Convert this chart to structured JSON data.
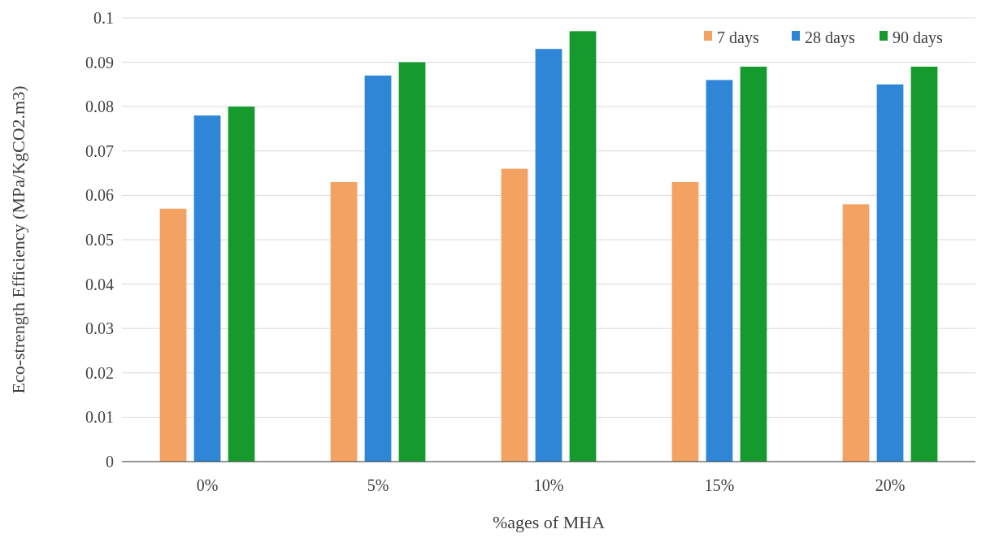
{
  "chart_data": {
    "type": "bar",
    "xlabel": "%ages of MHA",
    "ylabel": "Eco-strength Efficiency (MPa/KgCO2.m3)",
    "categories": [
      "0%",
      "5%",
      "10%",
      "15%",
      "20%"
    ],
    "series": [
      {
        "name": "7 days",
        "color": "#f4a261",
        "values": [
          0.057,
          0.063,
          0.066,
          0.063,
          0.058
        ]
      },
      {
        "name": "28 days",
        "color": "#2f86d6",
        "values": [
          0.078,
          0.087,
          0.093,
          0.086,
          0.085
        ]
      },
      {
        "name": "90 days",
        "color": "#169a2e",
        "values": [
          0.08,
          0.09,
          0.097,
          0.089,
          0.089
        ]
      }
    ],
    "ylim": [
      0,
      0.1
    ],
    "yticks": [
      0,
      0.01,
      0.02,
      0.03,
      0.04,
      0.05,
      0.06,
      0.07,
      0.08,
      0.09,
      0.1
    ],
    "grid": "y",
    "legend": "top right"
  }
}
